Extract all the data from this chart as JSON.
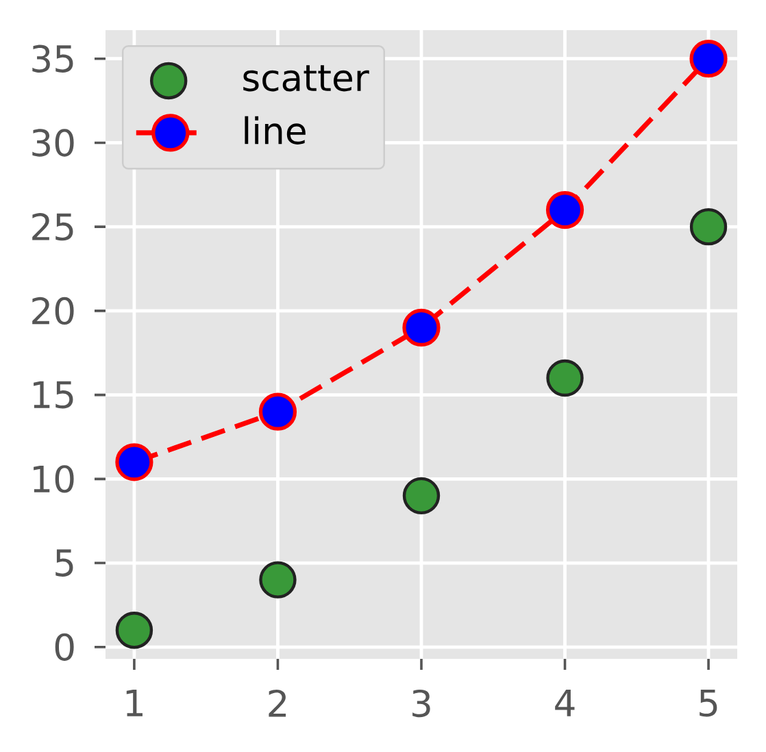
{
  "chart_data": {
    "type": "scatter",
    "x": [
      1,
      2,
      3,
      4,
      5
    ],
    "series": [
      {
        "name": "scatter",
        "color": "#399939",
        "values": [
          1,
          4,
          9,
          16,
          25
        ]
      },
      {
        "name": "line",
        "type": "line",
        "color": "#ff0000",
        "line_style": "dashed",
        "values": [
          11,
          14,
          19,
          26,
          35
        ]
      }
    ],
    "xlim": [
      0.8,
      5.2
    ],
    "ylim": [
      -0.7,
      36.7
    ],
    "xticks": [
      1,
      2,
      3,
      4,
      5
    ],
    "yticks": [
      0,
      5,
      10,
      15,
      20,
      25,
      30,
      35
    ],
    "grid": true,
    "legend": "top left",
    "marker": "circle"
  }
}
